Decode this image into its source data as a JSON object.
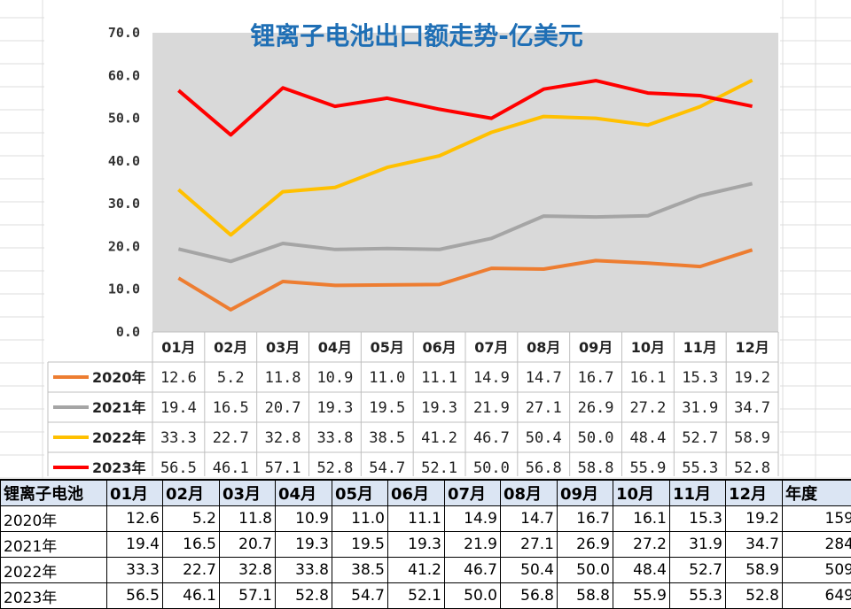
{
  "chart_data": {
    "type": "line",
    "title": "锂离子电池出口额走势-亿美元",
    "categories": [
      "01月",
      "02月",
      "03月",
      "04月",
      "05月",
      "06月",
      "07月",
      "08月",
      "09月",
      "10月",
      "11月",
      "12月"
    ],
    "yticks": [
      "0.0",
      "10.0",
      "20.0",
      "30.0",
      "40.0",
      "50.0",
      "60.0",
      "70.0"
    ],
    "ylim": [
      0,
      70
    ],
    "grid": false,
    "legend": "data-table-left",
    "series": [
      {
        "name": "2020年",
        "color": "#ed7d31",
        "values": [
          12.6,
          5.2,
          11.8,
          10.9,
          11.0,
          11.1,
          14.9,
          14.7,
          16.7,
          16.1,
          15.3,
          19.2
        ],
        "labels": [
          "12.6",
          "5.2",
          "11.8",
          "10.9",
          "11.0",
          "11.1",
          "14.9",
          "14.7",
          "16.7",
          "16.1",
          "15.3",
          "19.2"
        ]
      },
      {
        "name": "2021年",
        "color": "#a5a5a5",
        "values": [
          19.4,
          16.5,
          20.7,
          19.3,
          19.5,
          19.3,
          21.9,
          27.1,
          26.9,
          27.2,
          31.9,
          34.7
        ],
        "labels": [
          "19.4",
          "16.5",
          "20.7",
          "19.3",
          "19.5",
          "19.3",
          "21.9",
          "27.1",
          "26.9",
          "27.2",
          "31.9",
          "34.7"
        ]
      },
      {
        "name": "2022年",
        "color": "#ffc000",
        "values": [
          33.3,
          22.7,
          32.8,
          33.8,
          38.5,
          41.2,
          46.7,
          50.4,
          50.0,
          48.4,
          52.7,
          58.9
        ],
        "labels": [
          "33.3",
          "22.7",
          "32.8",
          "33.8",
          "38.5",
          "41.2",
          "46.7",
          "50.4",
          "50.0",
          "48.4",
          "52.7",
          "58.9"
        ]
      },
      {
        "name": "2023年",
        "color": "#ff0000",
        "values": [
          56.5,
          46.1,
          57.1,
          52.8,
          54.7,
          52.1,
          50.0,
          56.8,
          58.8,
          55.9,
          55.3,
          52.8
        ],
        "labels": [
          "56.5",
          "46.1",
          "57.1",
          "52.8",
          "54.7",
          "52.1",
          "50.0",
          "56.8",
          "58.8",
          "55.9",
          "55.3",
          "52.8"
        ]
      }
    ]
  },
  "table": {
    "corner": "锂离子电池",
    "total_header": "年度",
    "rows": [
      {
        "label": "2020年",
        "cells": [
          "12.6",
          "5.2",
          "11.8",
          "10.9",
          "11.0",
          "11.1",
          "14.9",
          "14.7",
          "16.7",
          "16.1",
          "15.3",
          "19.2"
        ],
        "total": "159"
      },
      {
        "label": "2021年",
        "cells": [
          "19.4",
          "16.5",
          "20.7",
          "19.3",
          "19.5",
          "19.3",
          "21.9",
          "27.1",
          "26.9",
          "27.2",
          "31.9",
          "34.7"
        ],
        "total": "284"
      },
      {
        "label": "2022年",
        "cells": [
          "33.3",
          "22.7",
          "32.8",
          "33.8",
          "38.5",
          "41.2",
          "46.7",
          "50.4",
          "50.0",
          "48.4",
          "52.7",
          "58.9"
        ],
        "total": "509"
      },
      {
        "label": "2023年",
        "cells": [
          "56.5",
          "46.1",
          "57.1",
          "52.8",
          "54.7",
          "52.1",
          "50.0",
          "56.8",
          "58.8",
          "55.9",
          "55.3",
          "52.8"
        ],
        "total": "649"
      }
    ]
  }
}
